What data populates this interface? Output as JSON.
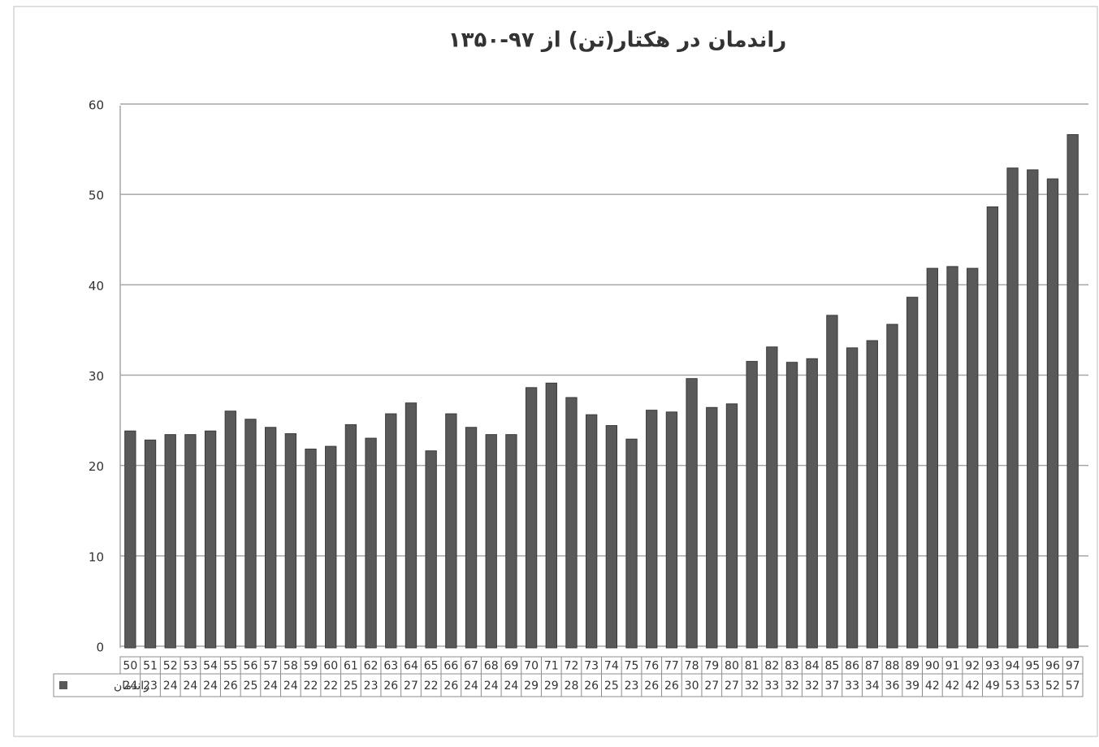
{
  "chart_data": {
    "type": "bar",
    "title": "راندمان در هکتار(تن) از ۹۷-۱۳۵۰",
    "categories": [
      "50",
      "51",
      "52",
      "53",
      "54",
      "55",
      "56",
      "57",
      "58",
      "59",
      "60",
      "61",
      "62",
      "63",
      "64",
      "65",
      "66",
      "67",
      "68",
      "69",
      "70",
      "71",
      "72",
      "73",
      "74",
      "75",
      "76",
      "77",
      "78",
      "79",
      "80",
      "81",
      "82",
      "83",
      "84",
      "85",
      "86",
      "87",
      "88",
      "89",
      "90",
      "91",
      "92",
      "93",
      "94",
      "95",
      "96",
      "97"
    ],
    "series": [
      {
        "name": "راندمان",
        "color": "#595959",
        "values": [
          24.0,
          23.0,
          23.6,
          23.6,
          24.0,
          26.2,
          25.3,
          24.4,
          23.7,
          22.0,
          22.3,
          24.7,
          23.2,
          25.9,
          27.1,
          21.8,
          25.9,
          24.4,
          23.6,
          23.6,
          28.8,
          29.3,
          27.7,
          25.8,
          24.6,
          23.1,
          26.3,
          26.1,
          29.8,
          26.6,
          27.0,
          31.7,
          33.3,
          31.6,
          32.0,
          36.8,
          33.2,
          34.0,
          35.8,
          38.8,
          42.0,
          42.2,
          42.0,
          48.8,
          53.1,
          52.9,
          51.9,
          56.8
        ],
        "value_labels": [
          "24",
          "23",
          "24",
          "24",
          "24",
          "26",
          "25",
          "24",
          "24",
          "22",
          "22",
          "25",
          "23",
          "26",
          "27",
          "22",
          "26",
          "24",
          "24",
          "24",
          "29",
          "29",
          "28",
          "26",
          "25",
          "23",
          "26",
          "26",
          "30",
          "27",
          "27",
          "32",
          "33",
          "32",
          "32",
          "37",
          "33",
          "34",
          "36",
          "39",
          "42",
          "42",
          "42",
          "49",
          "53",
          "53",
          "52",
          "57"
        ]
      }
    ],
    "ylim": [
      0,
      60
    ],
    "yticks": [
      0,
      10,
      20,
      30,
      40,
      50,
      60
    ],
    "grid": true
  }
}
